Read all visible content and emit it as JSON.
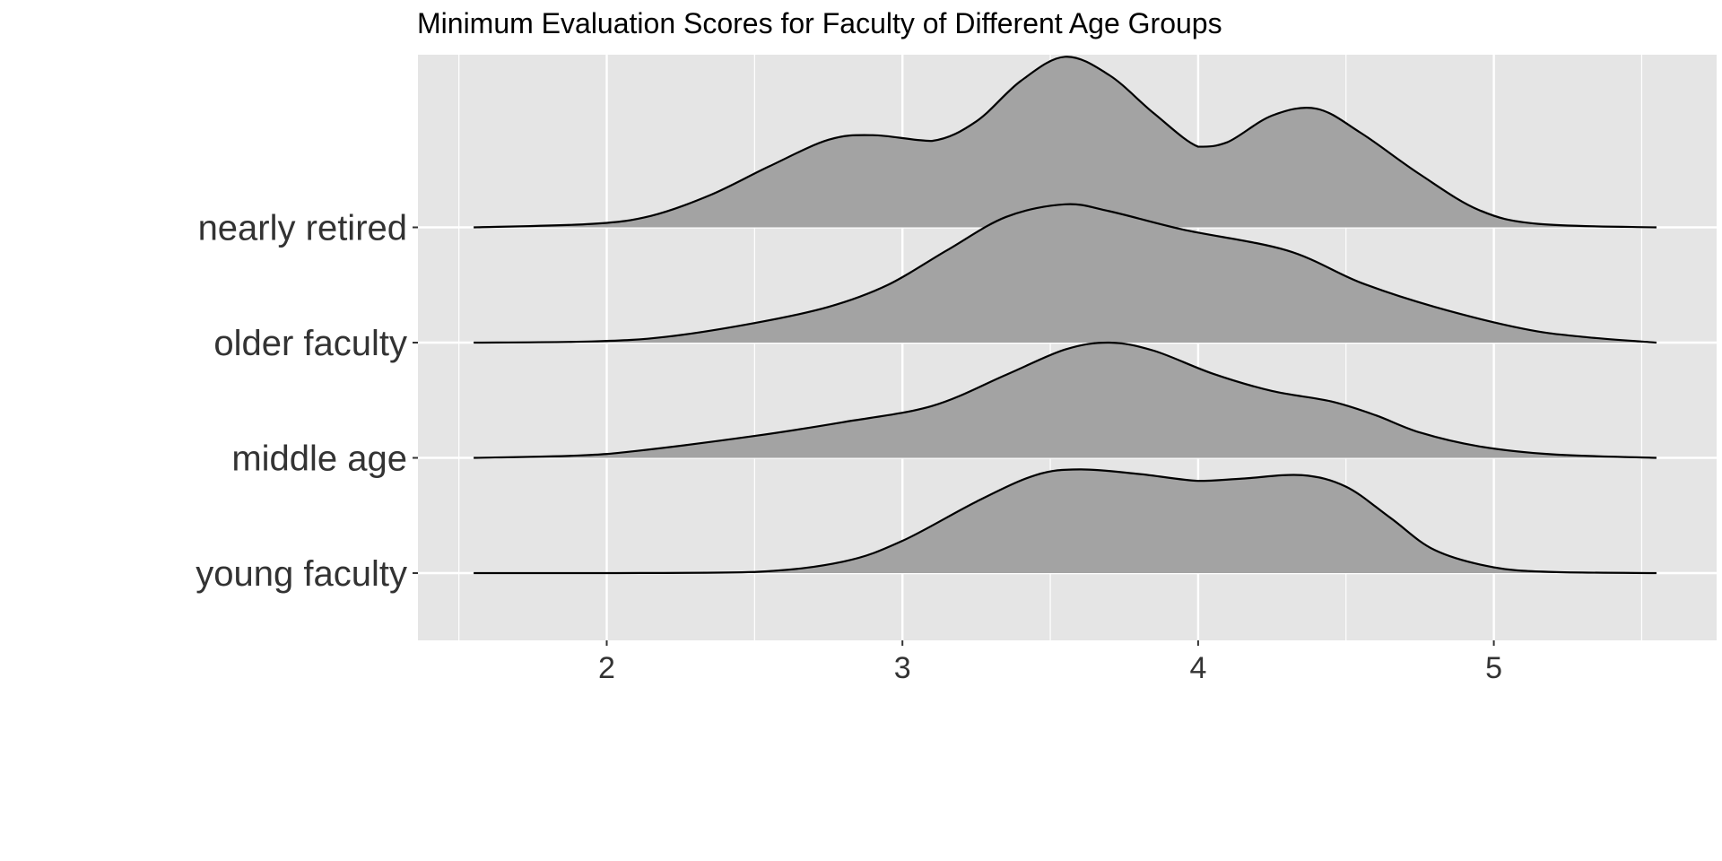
{
  "chart_data": {
    "type": "area",
    "subtype": "ridgeline-density",
    "title": "Minimum Evaluation Scores for Faculty of Different Age Groups",
    "xlabel": "",
    "ylabel": "",
    "xlim": [
      1.45,
      5.75
    ],
    "x_ticks": [
      2,
      3,
      4,
      5
    ],
    "x_tick_labels": [
      "2",
      "3",
      "4",
      "5"
    ],
    "x_range_drawn": [
      1.55,
      5.55
    ],
    "grid": true,
    "legend": "none",
    "colors": {
      "panel_background": "#e5e5e5",
      "grid": "#ffffff",
      "ridge_fill": "#a3a3a3",
      "ridge_line": "#000000",
      "text": "#333333"
    },
    "categories": [
      "young faculty",
      "middle age",
      "older faculty",
      "nearly retired"
    ],
    "series": [
      {
        "category": "young faculty",
        "points": [
          [
            1.55,
            0
          ],
          [
            2.0,
            0
          ],
          [
            2.5,
            0.01
          ],
          [
            2.8,
            0.1
          ],
          [
            3.0,
            0.28
          ],
          [
            3.25,
            0.62
          ],
          [
            3.45,
            0.85
          ],
          [
            3.6,
            0.9
          ],
          [
            3.8,
            0.86
          ],
          [
            4.0,
            0.8
          ],
          [
            4.15,
            0.82
          ],
          [
            4.35,
            0.85
          ],
          [
            4.5,
            0.75
          ],
          [
            4.65,
            0.48
          ],
          [
            4.8,
            0.2
          ],
          [
            5.0,
            0.05
          ],
          [
            5.2,
            0.01
          ],
          [
            5.55,
            0
          ]
        ]
      },
      {
        "category": "middle age",
        "points": [
          [
            1.55,
            0
          ],
          [
            1.9,
            0.02
          ],
          [
            2.1,
            0.06
          ],
          [
            2.5,
            0.19
          ],
          [
            2.8,
            0.31
          ],
          [
            3.1,
            0.45
          ],
          [
            3.35,
            0.72
          ],
          [
            3.55,
            0.94
          ],
          [
            3.7,
            1.0
          ],
          [
            3.85,
            0.93
          ],
          [
            4.05,
            0.73
          ],
          [
            4.25,
            0.58
          ],
          [
            4.45,
            0.49
          ],
          [
            4.6,
            0.37
          ],
          [
            4.75,
            0.22
          ],
          [
            4.95,
            0.1
          ],
          [
            5.2,
            0.03
          ],
          [
            5.55,
            0
          ]
        ]
      },
      {
        "category": "older faculty",
        "points": [
          [
            1.55,
            0
          ],
          [
            1.95,
            0.01
          ],
          [
            2.2,
            0.05
          ],
          [
            2.5,
            0.17
          ],
          [
            2.75,
            0.31
          ],
          [
            2.95,
            0.5
          ],
          [
            3.15,
            0.8
          ],
          [
            3.35,
            1.09
          ],
          [
            3.55,
            1.2
          ],
          [
            3.7,
            1.14
          ],
          [
            3.95,
            0.98
          ],
          [
            4.3,
            0.8
          ],
          [
            4.55,
            0.52
          ],
          [
            4.8,
            0.31
          ],
          [
            5.1,
            0.12
          ],
          [
            5.3,
            0.05
          ],
          [
            5.55,
            0
          ]
        ]
      },
      {
        "category": "nearly retired",
        "points": [
          [
            1.55,
            0
          ],
          [
            1.95,
            0.03
          ],
          [
            2.15,
            0.1
          ],
          [
            2.35,
            0.28
          ],
          [
            2.55,
            0.53
          ],
          [
            2.75,
            0.76
          ],
          [
            2.9,
            0.8
          ],
          [
            3.1,
            0.75
          ],
          [
            3.25,
            0.92
          ],
          [
            3.4,
            1.27
          ],
          [
            3.55,
            1.48
          ],
          [
            3.7,
            1.32
          ],
          [
            3.85,
            0.99
          ],
          [
            4.0,
            0.7
          ],
          [
            4.1,
            0.74
          ],
          [
            4.25,
            0.97
          ],
          [
            4.4,
            1.03
          ],
          [
            4.55,
            0.82
          ],
          [
            4.75,
            0.46
          ],
          [
            4.95,
            0.15
          ],
          [
            5.15,
            0.03
          ],
          [
            5.55,
            0
          ]
        ]
      }
    ]
  }
}
